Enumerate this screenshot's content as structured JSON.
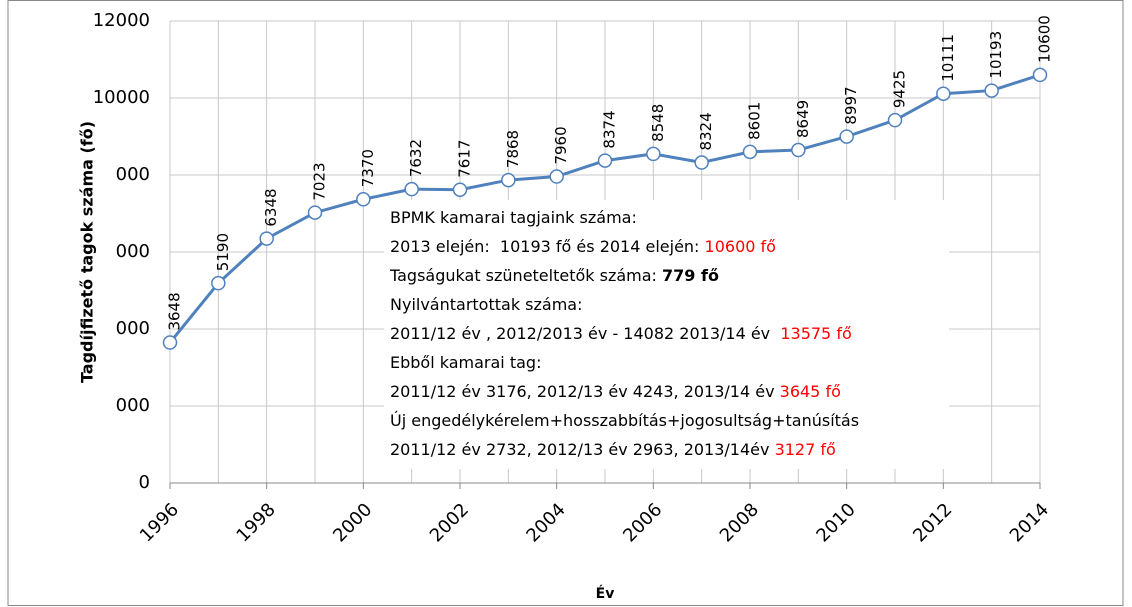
{
  "chart_data": {
    "type": "line",
    "y_axis_label": "Tagdíjfizető tagok száma (fő)",
    "x_axis_label": "Év",
    "x": [
      1996,
      1997,
      1998,
      1999,
      2000,
      2001,
      2002,
      2003,
      2004,
      2005,
      2006,
      2007,
      2008,
      2009,
      2010,
      2011,
      2012,
      2013,
      2014
    ],
    "xlim": [
      1996,
      2014
    ],
    "xticks": [
      1996,
      1998,
      2000,
      2002,
      2004,
      2006,
      2008,
      2010,
      2012,
      2014
    ],
    "series": [
      {
        "color": "#4f81bd",
        "values": [
          3648,
          5190,
          6348,
          7023,
          7370,
          7632,
          7617,
          7868,
          7960,
          8374,
          8548,
          8324,
          8601,
          8649,
          8997,
          9425,
          10111,
          10193,
          10600
        ]
      }
    ],
    "ylim": [
      0,
      12000
    ],
    "yticks": [
      0,
      {
        "value": 2000,
        "label": "000"
      },
      {
        "value": 4000,
        "label": "000"
      },
      {
        "value": 6000,
        "label": "000"
      },
      {
        "value": 8000,
        "label": "000"
      },
      10000,
      12000
    ],
    "grid": true,
    "annotation": [
      [
        {
          "text": "BPMK kamarai tagjaink száma:"
        }
      ],
      [
        {
          "text": "2013 elején:  10193 fő és 2014 elején: "
        },
        {
          "text": "10600 fő",
          "color": "#ff0000"
        }
      ],
      [
        {
          "text": "Tagságukat szüneteltetők száma: "
        },
        {
          "text": "779 fő",
          "bold": true
        }
      ],
      [
        {
          "text": "Nyilvántartottak száma:"
        }
      ],
      [
        {
          "text": "2011/12 év , 2012/2013 év - 14082 2013/14 év  "
        },
        {
          "text": "13575 fő",
          "color": "#ff0000"
        }
      ],
      [
        {
          "text": "Ebből kamarai tag:"
        }
      ],
      [
        {
          "text": "2011/12 év 3176, 2012/13 év 4243, 2013/14 év "
        },
        {
          "text": "3645 fő",
          "color": "#ff0000"
        }
      ],
      [
        {
          "text": "Új engedélykérelem+hosszabbítás+jogosultság+tanúsítás"
        }
      ],
      [
        {
          "text": "2011/12 év 2732, 2012/13 év 2963, 2013/14év "
        },
        {
          "text": "3127 fő",
          "color": "#ff0000"
        }
      ]
    ]
  }
}
